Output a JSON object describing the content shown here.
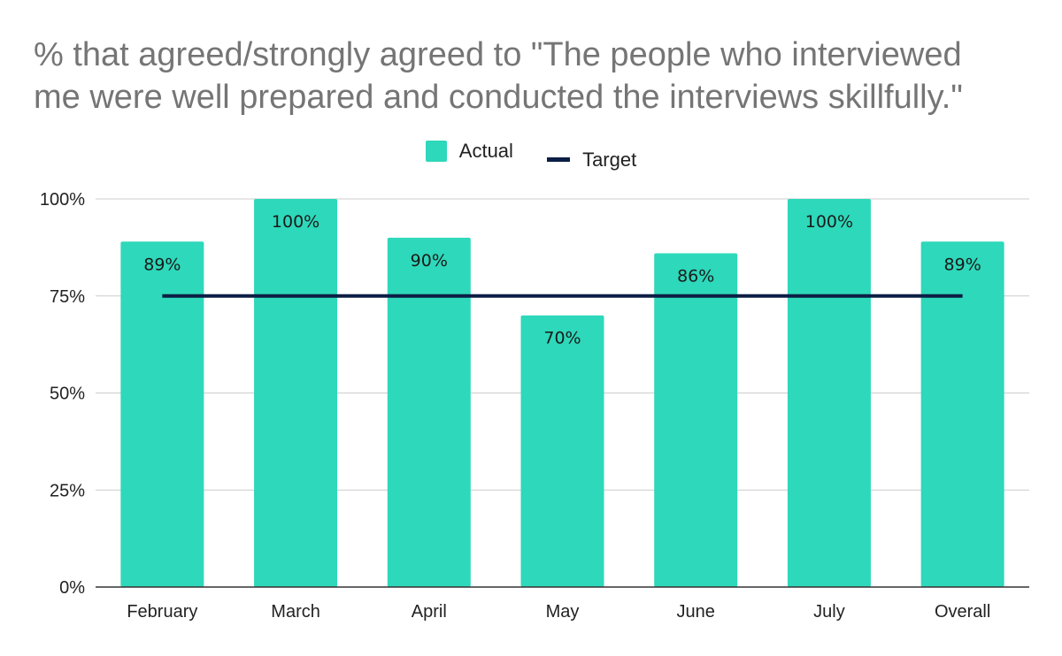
{
  "colors": {
    "actual": "#2ed8ba",
    "target": "#0c1e45",
    "grid": "#cccccc",
    "axis": "#333333"
  },
  "chart_data": {
    "type": "bar",
    "title_lines": [
      "% that agreed/strongly agreed to \"The people who interviewed",
      "me were well prepared and conducted the interviews skillfully.\""
    ],
    "categories": [
      "February",
      "March",
      "April",
      "May",
      "June",
      "July",
      "Overall"
    ],
    "series": [
      {
        "name": "Actual",
        "type": "bar",
        "values": [
          89,
          100,
          90,
          70,
          86,
          100,
          89
        ],
        "labels": [
          "89%",
          "100%",
          "90%",
          "70%",
          "86%",
          "100%",
          "89%"
        ]
      },
      {
        "name": "Target",
        "type": "line",
        "values": [
          75,
          75,
          75,
          75,
          75,
          75,
          75
        ]
      }
    ],
    "ylim": [
      0,
      100
    ],
    "yticks": [
      0,
      25,
      50,
      75,
      100
    ],
    "ytick_labels": [
      "0%",
      "25%",
      "50%",
      "75%",
      "100%"
    ],
    "legend_position": "top-center",
    "grid": true
  }
}
